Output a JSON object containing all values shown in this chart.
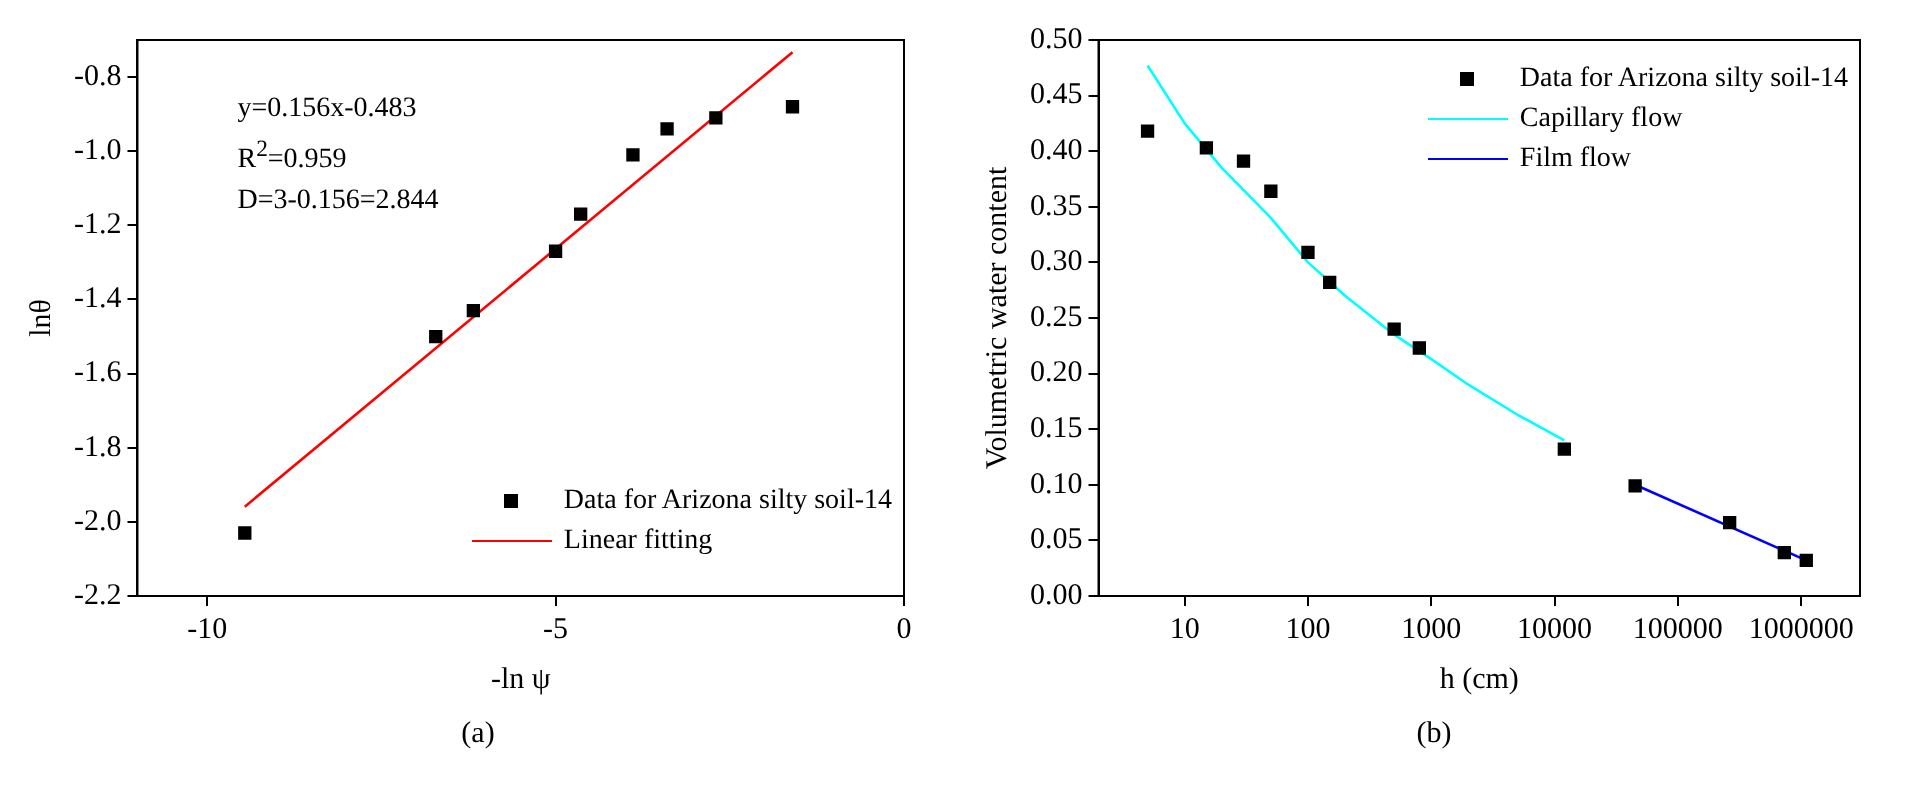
{
  "chart_data": [
    {
      "type": "scatter",
      "title": "(a)",
      "xlabel": "-ln ψ",
      "ylabel": "lnθ",
      "xlim": [
        -11,
        0
      ],
      "xticks": [
        -10,
        -5,
        0
      ],
      "ylim": [
        -2.2,
        -0.7
      ],
      "yticks": [
        -2.2,
        {
          "value": -2.0,
          "label": "-2.0"
        },
        -1.8,
        -1.6,
        -1.4,
        -1.2,
        {
          "value": -1.0,
          "label": "-1.0"
        },
        -0.8
      ],
      "grid": false,
      "legend": "bottom right",
      "annotations": [
        "y=0.156x-0.483",
        "R$^{2}$=0.959",
        "D=3-0.156=2.844"
      ],
      "series": [
        {
          "name": "Data for Arizona silty soil-14",
          "marker": "square",
          "color": "#000000",
          "x": [
            -9.46,
            -6.72,
            -6.18,
            -5.0,
            -4.64,
            -3.89,
            -3.4,
            -2.7,
            -1.6
          ],
          "values": [
            -2.03,
            -1.5,
            -1.43,
            -1.27,
            -1.17,
            -1.01,
            -0.94,
            -0.91,
            -0.88
          ]
        },
        {
          "name": "Linear fitting",
          "type": "line",
          "color": "#ff0000",
          "x": [
            -9.46,
            -1.6
          ],
          "values": [
            -1.959,
            -0.733
          ]
        }
      ]
    },
    {
      "type": "scatter",
      "title": "(b)",
      "xlabel": "h (cm)",
      "ylabel": "Volumetric water content",
      "log": "x",
      "xlim": [
        2,
        3000000
      ],
      "xticks": [
        10,
        100,
        1000,
        10000,
        100000,
        1000000
      ],
      "ylim": [
        0,
        0.5
      ],
      "yticks": [
        {
          "value": 0,
          "label": "0.00"
        },
        0.05,
        {
          "value": 0.1,
          "label": "0.10"
        },
        0.15,
        {
          "value": 0.2,
          "label": "0.20"
        },
        0.25,
        {
          "value": 0.3,
          "label": "0.30"
        },
        0.35,
        {
          "value": 0.4,
          "label": "0.40"
        },
        0.45,
        {
          "value": 0.5,
          "label": "0.50"
        }
      ],
      "grid": false,
      "legend": "top right",
      "series": [
        {
          "name": "Data for Arizona silty soil-14",
          "marker": "square",
          "color": "#000000",
          "x": [
            5,
            15,
            30,
            50,
            100,
            150,
            500,
            800,
            12000,
            45000,
            263000,
            730000,
            1100000
          ],
          "values": [
            0.418,
            0.403,
            0.391,
            0.364,
            0.309,
            0.282,
            0.24,
            0.223,
            0.132,
            0.099,
            0.066,
            0.039,
            0.032
          ]
        },
        {
          "name": "Capillary flow",
          "type": "line",
          "color": "#00ffff",
          "x": [
            5,
            10,
            20,
            50,
            100,
            200,
            500,
            1000,
            2000,
            5000,
            12000
          ],
          "values": [
            0.477,
            0.425,
            0.385,
            0.34,
            0.3,
            0.27,
            0.235,
            0.213,
            0.19,
            0.163,
            0.14
          ]
        },
        {
          "name": "Film flow",
          "type": "line",
          "color": "#0000ff",
          "x": [
            45000,
            1100000
          ],
          "values": [
            0.1,
            0.032
          ]
        }
      ]
    }
  ]
}
